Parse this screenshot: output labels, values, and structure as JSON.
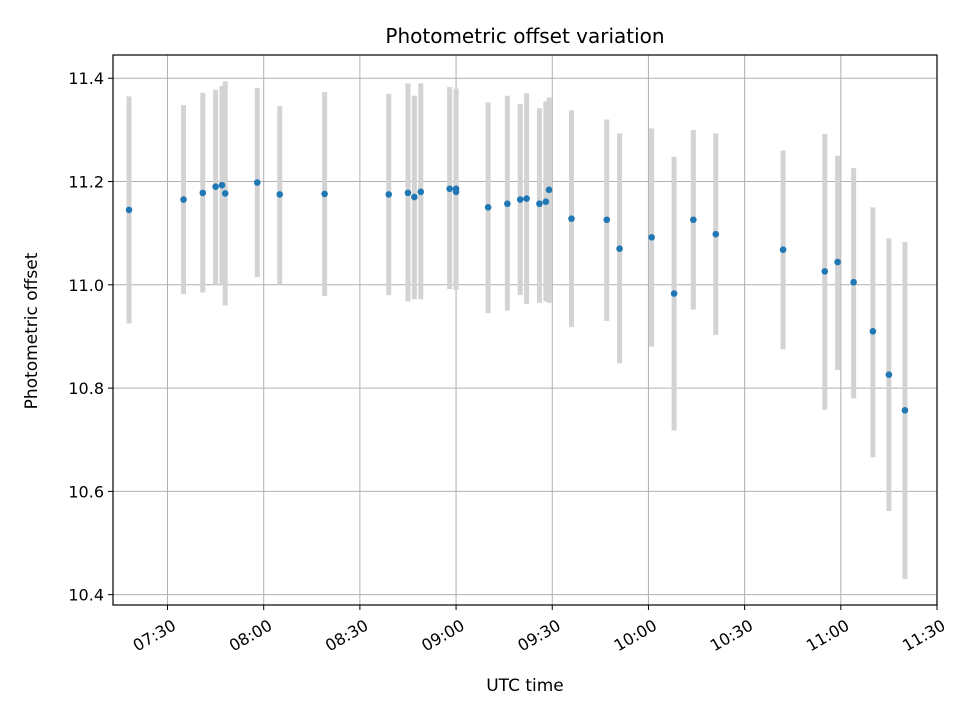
{
  "chart_data": {
    "type": "scatter",
    "title": "Photometric offset variation",
    "xlabel": "UTC time",
    "ylabel": "Photometric offset",
    "x_axis": "time",
    "xlim": [
      "07:13",
      "11:30"
    ],
    "ylim": [
      10.38,
      11.445
    ],
    "x_ticks": [
      "07:30",
      "08:00",
      "08:30",
      "09:00",
      "09:30",
      "10:00",
      "10:30",
      "11:00",
      "11:30"
    ],
    "y_ticks": [
      10.4,
      10.6,
      10.8,
      11.0,
      11.2,
      11.4
    ],
    "y_tick_labels": [
      "10.4",
      "10.6",
      "10.8",
      "11.0",
      "11.2",
      "11.4"
    ],
    "grid": true,
    "colors": {
      "point": "#1f77b4",
      "errorbar": "#d3d3d3",
      "grid": "#b0b0b0"
    },
    "points": [
      {
        "x": "07:18",
        "y": 11.145,
        "lo": 10.925,
        "hi": 11.365
      },
      {
        "x": "07:35",
        "y": 11.165,
        "lo": 10.982,
        "hi": 11.348
      },
      {
        "x": "07:41",
        "y": 11.178,
        "lo": 10.985,
        "hi": 11.372
      },
      {
        "x": "07:45",
        "y": 11.19,
        "lo": 11.0,
        "hi": 11.378
      },
      {
        "x": "07:47",
        "y": 11.193,
        "lo": 11.0,
        "hi": 11.385
      },
      {
        "x": "07:48",
        "y": 11.177,
        "lo": 10.96,
        "hi": 11.394
      },
      {
        "x": "07:58",
        "y": 11.198,
        "lo": 11.015,
        "hi": 11.381
      },
      {
        "x": "08:05",
        "y": 11.175,
        "lo": 11.0,
        "hi": 11.346
      },
      {
        "x": "08:19",
        "y": 11.176,
        "lo": 10.978,
        "hi": 11.373
      },
      {
        "x": "08:39",
        "y": 11.175,
        "lo": 10.98,
        "hi": 11.37
      },
      {
        "x": "08:45",
        "y": 11.178,
        "lo": 10.968,
        "hi": 11.39
      },
      {
        "x": "08:47",
        "y": 11.17,
        "lo": 10.972,
        "hi": 11.366
      },
      {
        "x": "08:49",
        "y": 11.18,
        "lo": 10.972,
        "hi": 11.39
      },
      {
        "x": "08:58",
        "y": 11.186,
        "lo": 10.992,
        "hi": 11.383
      },
      {
        "x": "09:00",
        "y": 11.186,
        "lo": 10.99,
        "hi": 11.38
      },
      {
        "x": "09:00",
        "y": 11.18,
        "lo": 10.99,
        "hi": 11.376
      },
      {
        "x": "09:10",
        "y": 11.15,
        "lo": 10.945,
        "hi": 11.353
      },
      {
        "x": "09:16",
        "y": 11.157,
        "lo": 10.95,
        "hi": 11.366
      },
      {
        "x": "09:20",
        "y": 11.165,
        "lo": 10.98,
        "hi": 11.35
      },
      {
        "x": "09:22",
        "y": 11.167,
        "lo": 10.963,
        "hi": 11.371
      },
      {
        "x": "09:26",
        "y": 11.157,
        "lo": 10.965,
        "hi": 11.342
      },
      {
        "x": "09:28",
        "y": 11.161,
        "lo": 10.968,
        "hi": 11.355
      },
      {
        "x": "09:29",
        "y": 11.184,
        "lo": 10.965,
        "hi": 11.363
      },
      {
        "x": "09:36",
        "y": 11.128,
        "lo": 10.918,
        "hi": 11.338
      },
      {
        "x": "09:47",
        "y": 11.126,
        "lo": 10.93,
        "hi": 11.32
      },
      {
        "x": "09:51",
        "y": 11.07,
        "lo": 10.848,
        "hi": 11.293
      },
      {
        "x": "10:01",
        "y": 11.092,
        "lo": 10.88,
        "hi": 11.303
      },
      {
        "x": "10:08",
        "y": 10.983,
        "lo": 10.718,
        "hi": 11.248
      },
      {
        "x": "10:14",
        "y": 11.126,
        "lo": 10.952,
        "hi": 11.3
      },
      {
        "x": "10:21",
        "y": 11.098,
        "lo": 10.903,
        "hi": 11.293
      },
      {
        "x": "10:42",
        "y": 11.068,
        "lo": 10.875,
        "hi": 11.26
      },
      {
        "x": "10:55",
        "y": 11.026,
        "lo": 10.758,
        "hi": 11.292
      },
      {
        "x": "10:59",
        "y": 11.044,
        "lo": 10.835,
        "hi": 11.25
      },
      {
        "x": "11:04",
        "y": 11.005,
        "lo": 10.78,
        "hi": 11.226
      },
      {
        "x": "11:10",
        "y": 10.91,
        "lo": 10.666,
        "hi": 11.15
      },
      {
        "x": "11:15",
        "y": 10.826,
        "lo": 10.562,
        "hi": 11.09
      },
      {
        "x": "11:20",
        "y": 10.757,
        "lo": 10.43,
        "hi": 11.083
      }
    ]
  }
}
